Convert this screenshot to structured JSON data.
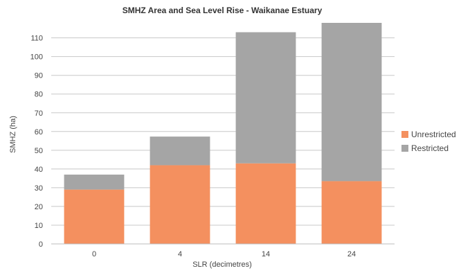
{
  "chart_data": {
    "type": "bar",
    "stacked": true,
    "title": "SMHZ Area and Sea Level Rise - Waikanae Estuary",
    "xlabel": "SLR (decimetres)",
    "ylabel": "SMHZ (ha)",
    "categories": [
      "0",
      "4",
      "14",
      "24"
    ],
    "series": [
      {
        "name": "Unrestricted",
        "color": "#f4905f",
        "values": [
          29,
          42,
          43,
          33.5
        ]
      },
      {
        "name": "Restricted",
        "color": "#a5a5a5",
        "values": [
          8,
          15.3,
          70,
          84.5
        ]
      }
    ],
    "ylim": [
      0,
      118
    ],
    "yticks": [
      0,
      10,
      20,
      30,
      40,
      50,
      60,
      70,
      80,
      90,
      100,
      110
    ],
    "grid": true,
    "legend_position": "right"
  }
}
